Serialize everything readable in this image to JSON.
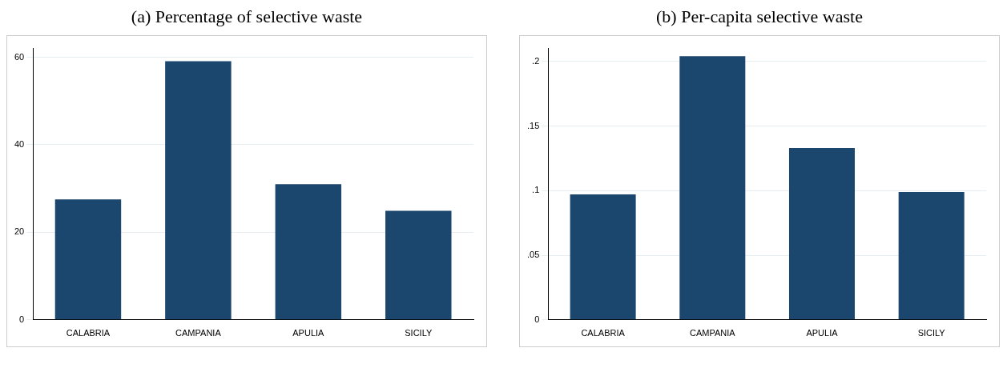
{
  "chart_data": [
    {
      "type": "bar",
      "title": "(a) Percentage of selective waste",
      "categories": [
        "CALABRIA",
        "CAMPANIA",
        "APULIA",
        "SICILY"
      ],
      "values": [
        27.5,
        59.1,
        31.0,
        24.9
      ],
      "color": "#1b466e",
      "ylim": [
        0,
        62
      ],
      "yticks": [
        0,
        20,
        40,
        60
      ],
      "grid": "y"
    },
    {
      "type": "bar",
      "title": "(b) Per-capita selective waste",
      "categories": [
        "CALABRIA",
        "CAMPANIA",
        "APULIA",
        "SICILY"
      ],
      "values": [
        0.097,
        0.204,
        0.133,
        0.099
      ],
      "color": "#1b466e",
      "ylim": [
        0,
        0.21
      ],
      "yticks": [
        {
          "value": 0,
          "label": "0"
        },
        {
          "value": 0.05,
          "label": ".05"
        },
        {
          "value": 0.1,
          "label": ".1"
        },
        {
          "value": 0.15,
          "label": ".15"
        },
        {
          "value": 0.2,
          "label": ".2"
        }
      ],
      "grid": "y"
    }
  ]
}
